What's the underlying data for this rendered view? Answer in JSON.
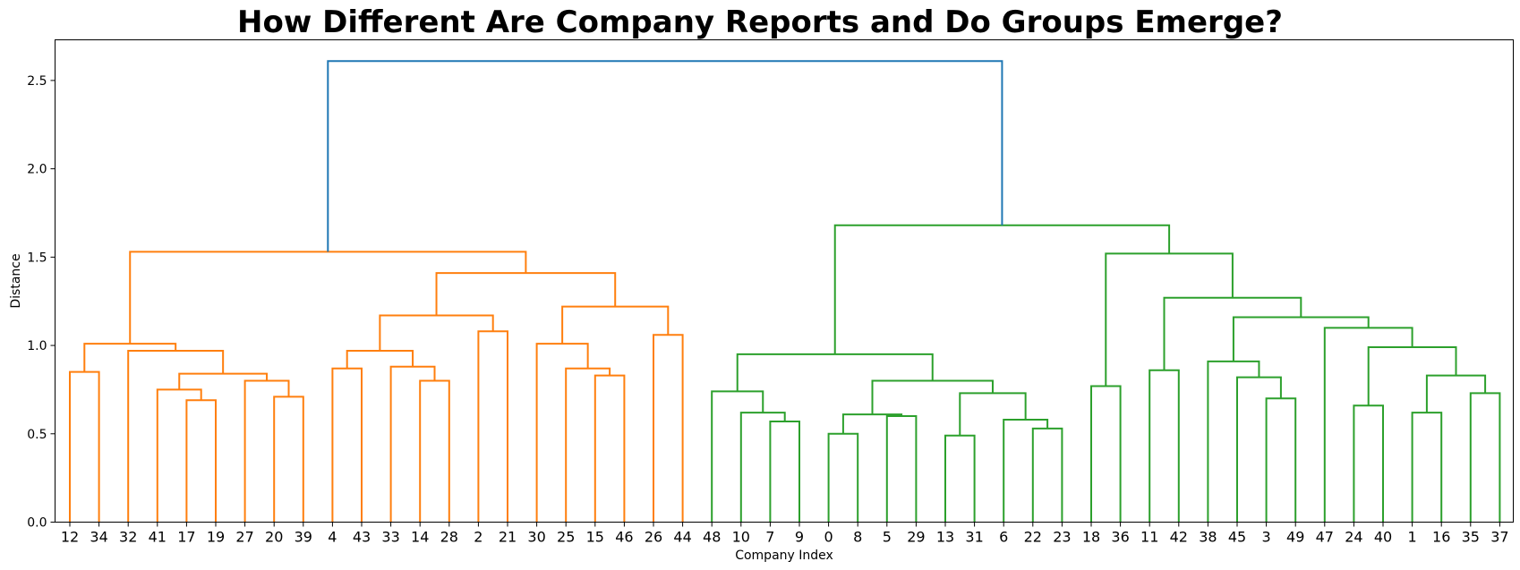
{
  "chart_data": {
    "type": "dendrogram",
    "title": "How Different Are Company Reports and Do Groups Emerge?",
    "xlabel": "Company Index",
    "ylabel": "Distance",
    "ylim": [
      0,
      2.73
    ],
    "yticks": [
      "0.0",
      "0.5",
      "1.0",
      "1.5",
      "2.0",
      "2.5"
    ],
    "leaf_order": [
      "12",
      "34",
      "32",
      "41",
      "17",
      "19",
      "27",
      "20",
      "39",
      "4",
      "43",
      "33",
      "14",
      "28",
      "2",
      "21",
      "30",
      "25",
      "15",
      "46",
      "26",
      "44",
      "48",
      "10",
      "7",
      "9",
      "0",
      "8",
      "5",
      "29",
      "13",
      "31",
      "6",
      "22",
      "23",
      "18",
      "36",
      "11",
      "42",
      "38",
      "45",
      "3",
      "49",
      "47",
      "24",
      "40",
      "1",
      "16",
      "35",
      "37"
    ],
    "colors": {
      "above_threshold": "#1f77b4",
      "cluster_1": "#ff7f0e",
      "cluster_2": "#2ca02c"
    },
    "merges": [
      {
        "a": "L:12",
        "b": "L:34",
        "h": 0.85,
        "c": "cluster_1"
      },
      {
        "a": "L:17",
        "b": "L:19",
        "h": 0.69,
        "c": "cluster_1"
      },
      {
        "a": "L:41",
        "b": "N:1",
        "h": 0.75,
        "c": "cluster_1"
      },
      {
        "a": "L:20",
        "b": "L:39",
        "h": 0.71,
        "c": "cluster_1"
      },
      {
        "a": "L:27",
        "b": "N:3",
        "h": 0.8,
        "c": "cluster_1"
      },
      {
        "a": "N:2",
        "b": "N:4",
        "h": 0.84,
        "c": "cluster_1"
      },
      {
        "a": "L:32",
        "b": "N:5",
        "h": 0.97,
        "c": "cluster_1"
      },
      {
        "a": "N:0",
        "b": "N:6",
        "h": 1.01,
        "c": "cluster_1"
      },
      {
        "a": "L:4",
        "b": "L:43",
        "h": 0.87,
        "c": "cluster_1"
      },
      {
        "a": "L:14",
        "b": "L:28",
        "h": 0.8,
        "c": "cluster_1"
      },
      {
        "a": "L:33",
        "b": "N:9",
        "h": 0.88,
        "c": "cluster_1"
      },
      {
        "a": "N:8",
        "b": "N:10",
        "h": 0.97,
        "c": "cluster_1"
      },
      {
        "a": "L:2",
        "b": "L:21",
        "h": 1.08,
        "c": "cluster_1"
      },
      {
        "a": "N:11",
        "b": "N:12",
        "h": 1.17,
        "c": "cluster_1"
      },
      {
        "a": "L:15",
        "b": "L:46",
        "h": 0.83,
        "c": "cluster_1"
      },
      {
        "a": "L:25",
        "b": "N:14",
        "h": 0.87,
        "c": "cluster_1"
      },
      {
        "a": "L:30",
        "b": "N:15",
        "h": 1.01,
        "c": "cluster_1"
      },
      {
        "a": "L:26",
        "b": "L:44",
        "h": 1.06,
        "c": "cluster_1"
      },
      {
        "a": "N:16",
        "b": "N:17",
        "h": 1.22,
        "c": "cluster_1"
      },
      {
        "a": "N:13",
        "b": "N:18",
        "h": 1.41,
        "c": "cluster_1"
      },
      {
        "a": "N:7",
        "b": "N:19",
        "h": 1.53,
        "c": "cluster_1"
      },
      {
        "a": "L:7",
        "b": "L:9",
        "h": 0.57,
        "c": "cluster_2"
      },
      {
        "a": "L:10",
        "b": "N:21",
        "h": 0.62,
        "c": "cluster_2"
      },
      {
        "a": "L:48",
        "b": "N:22",
        "h": 0.74,
        "c": "cluster_2"
      },
      {
        "a": "L:0",
        "b": "L:8",
        "h": 0.5,
        "c": "cluster_2"
      },
      {
        "a": "L:5",
        "b": "L:29",
        "h": 0.6,
        "c": "cluster_2"
      },
      {
        "a": "N:24",
        "b": "N:25",
        "h": 0.61,
        "c": "cluster_2"
      },
      {
        "a": "L:13",
        "b": "L:31",
        "h": 0.49,
        "c": "cluster_2"
      },
      {
        "a": "L:22",
        "b": "L:23",
        "h": 0.53,
        "c": "cluster_2"
      },
      {
        "a": "L:6",
        "b": "N:28",
        "h": 0.58,
        "c": "cluster_2"
      },
      {
        "a": "N:27",
        "b": "N:29",
        "h": 0.73,
        "c": "cluster_2"
      },
      {
        "a": "N:26",
        "b": "N:30",
        "h": 0.8,
        "c": "cluster_2"
      },
      {
        "a": "N:23",
        "b": "N:31",
        "h": 0.95,
        "c": "cluster_2"
      },
      {
        "a": "L:18",
        "b": "L:36",
        "h": 0.77,
        "c": "cluster_2"
      },
      {
        "a": "L:11",
        "b": "L:42",
        "h": 0.86,
        "c": "cluster_2"
      },
      {
        "a": "L:3",
        "b": "L:49",
        "h": 0.7,
        "c": "cluster_2"
      },
      {
        "a": "L:45",
        "b": "N:35",
        "h": 0.82,
        "c": "cluster_2"
      },
      {
        "a": "L:38",
        "b": "N:36",
        "h": 0.91,
        "c": "cluster_2"
      },
      {
        "a": "L:24",
        "b": "L:40",
        "h": 0.66,
        "c": "cluster_2"
      },
      {
        "a": "L:1",
        "b": "L:16",
        "h": 0.62,
        "c": "cluster_2"
      },
      {
        "a": "L:35",
        "b": "L:37",
        "h": 0.73,
        "c": "cluster_2"
      },
      {
        "a": "N:39",
        "b": "N:40",
        "h": 0.83,
        "c": "cluster_2"
      },
      {
        "a": "N:38",
        "b": "N:41",
        "h": 0.99,
        "c": "cluster_2"
      },
      {
        "a": "L:47",
        "b": "N:42",
        "h": 1.1,
        "c": "cluster_2"
      },
      {
        "a": "N:37",
        "b": "N:43",
        "h": 1.16,
        "c": "cluster_2"
      },
      {
        "a": "N:34",
        "b": "N:44",
        "h": 1.27,
        "c": "cluster_2"
      },
      {
        "a": "N:33",
        "b": "N:45",
        "h": 1.52,
        "c": "cluster_2"
      },
      {
        "a": "N:32",
        "b": "N:46",
        "h": 1.68,
        "c": "cluster_2"
      },
      {
        "a": "N:20",
        "b": "N:47",
        "h": 2.61,
        "c": "above_threshold"
      }
    ]
  }
}
